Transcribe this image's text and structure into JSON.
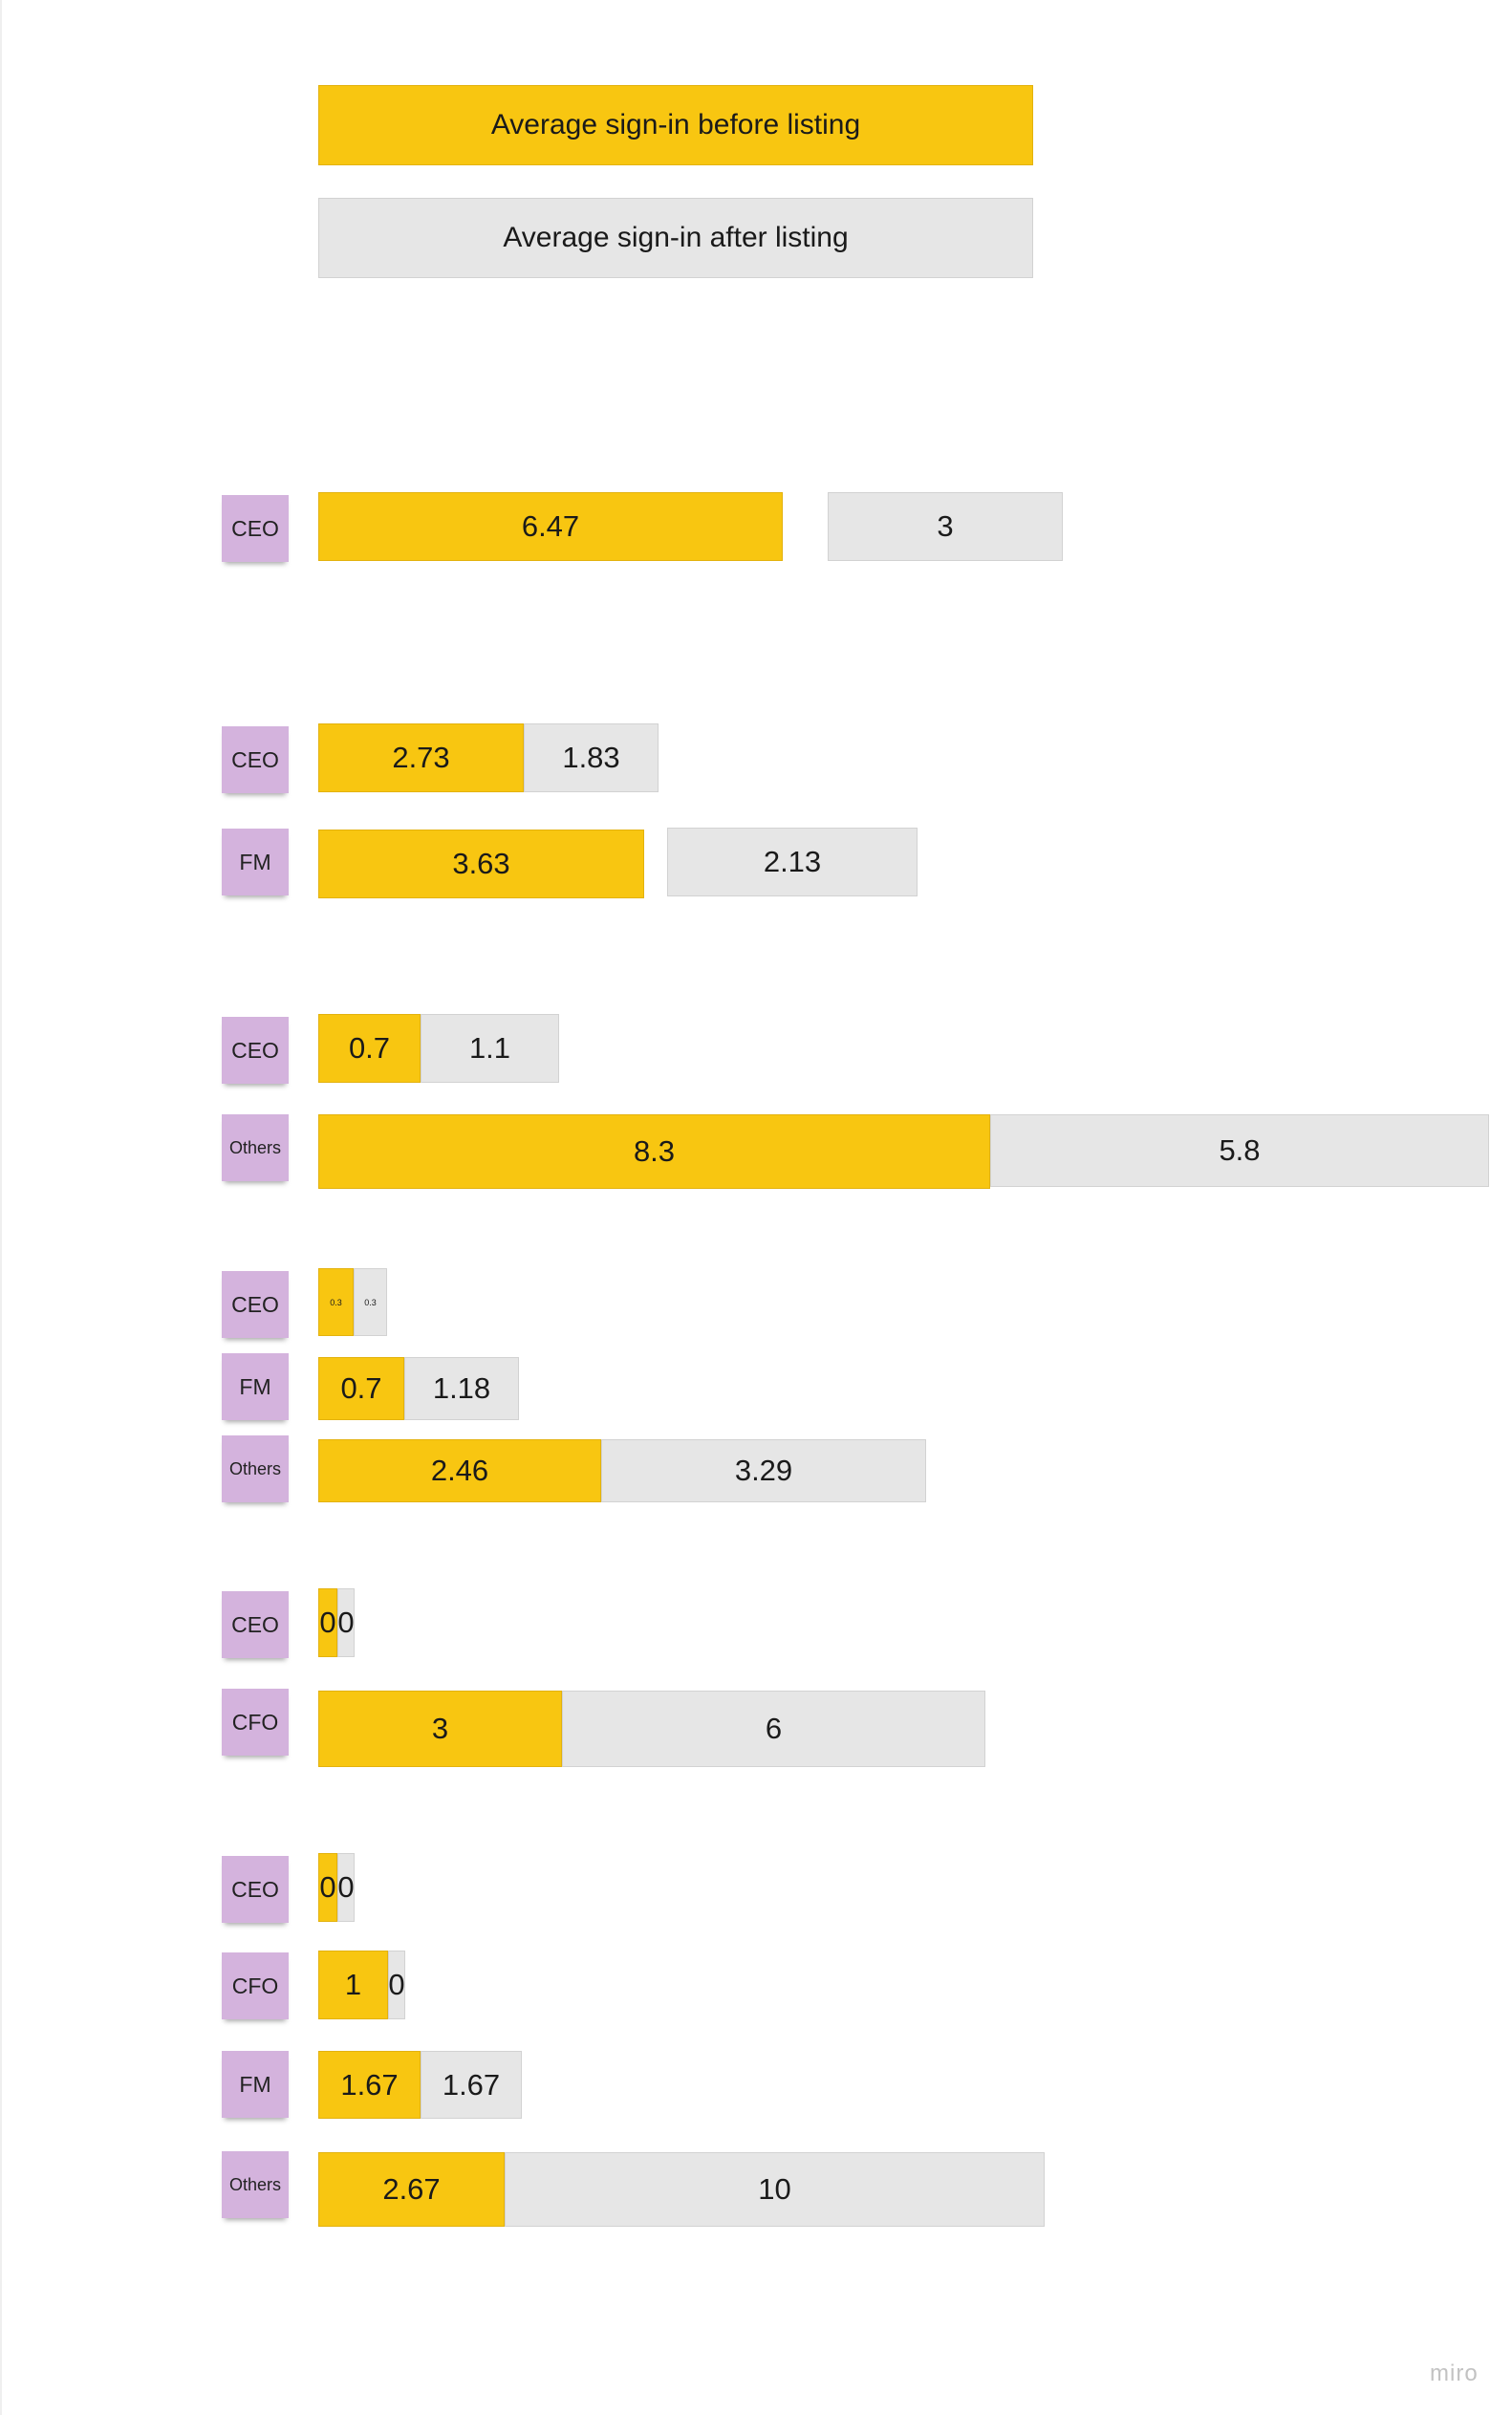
{
  "legend": {
    "before_label": "Average sign-in before listing",
    "after_label": "Average sign-in after listing",
    "before_color": "#f8c611",
    "after_color": "#e6e6e6"
  },
  "sticky_color": "#d4b3dd",
  "groups": [
    {
      "rows": [
        {
          "role": "CEO",
          "before": "6.47",
          "after": "3"
        }
      ]
    },
    {
      "rows": [
        {
          "role": "CEO",
          "before": "2.73",
          "after": "1.83"
        },
        {
          "role": "FM",
          "before": "3.63",
          "after": "2.13"
        }
      ]
    },
    {
      "rows": [
        {
          "role": "CEO",
          "before": "0.7",
          "after": "1.1"
        },
        {
          "role": "Others",
          "before": "8.3",
          "after": "5.8"
        }
      ]
    },
    {
      "rows": [
        {
          "role": "CEO",
          "before": "0.3",
          "after": "0.3"
        },
        {
          "role": "FM",
          "before": "0.7",
          "after": "1.18"
        },
        {
          "role": "Others",
          "before": "2.46",
          "after": "3.29"
        }
      ]
    },
    {
      "rows": [
        {
          "role": "CEO",
          "before": "0",
          "after": "0"
        },
        {
          "role": "CFO",
          "before": "3",
          "after": "6"
        }
      ]
    },
    {
      "rows": [
        {
          "role": "CEO",
          "before": "0",
          "after": "0"
        },
        {
          "role": "CFO",
          "before": "1",
          "after": "0"
        },
        {
          "role": "FM",
          "before": "1.67",
          "after": "1.67"
        },
        {
          "role": "Others",
          "before": "2.67",
          "after": "10"
        }
      ]
    }
  ],
  "watermark": "miro"
}
